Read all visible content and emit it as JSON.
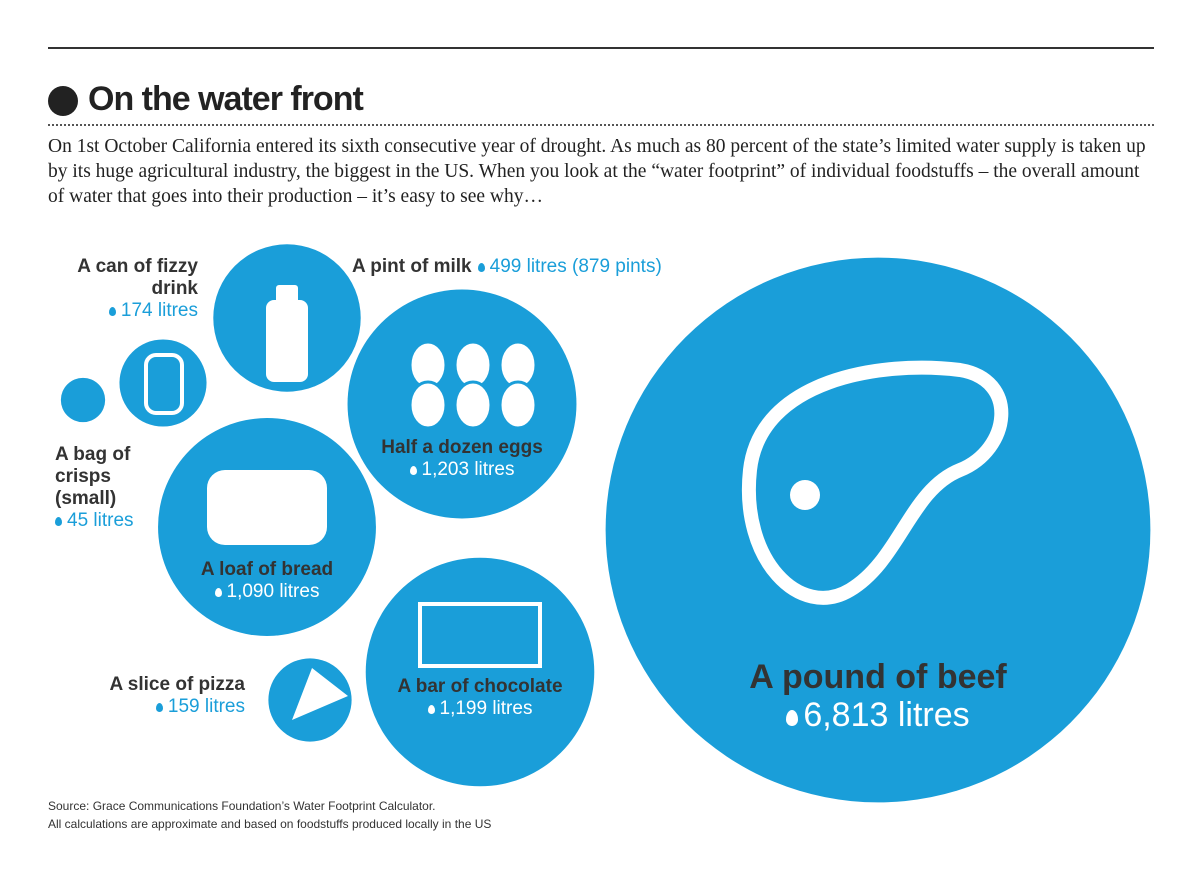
{
  "chart_data": {
    "type": "bubble",
    "title": "On the water front",
    "subtitle": "On 1st October California entered its sixth consecutive year of drought. As much as 80 percent of the state’s limited water supply is taken up by its huge agricultural industry, the biggest in the US. When you look at the “water footprint” of individual foodstuffs – the overall amount of water that goes into their production – it’s easy to see why…",
    "categories": [
      "A can of fizzy drink",
      "A bag of crisps (small)",
      "A pint of milk",
      "Half a dozen eggs",
      "A loaf of bread",
      "A slice of pizza",
      "A bar of chocolate",
      "A pound of beef"
    ],
    "values": [
      174,
      45,
      499,
      1203,
      1090,
      159,
      1199,
      6813
    ],
    "value_labels": [
      "174 litres",
      "45 litres",
      "499 litres (879 pints)",
      "1,203 litres",
      "1,090 litres",
      "159 litres",
      "1,199 litres",
      "6,813 litres"
    ],
    "color": "#1a9ed9",
    "source": [
      "Source: Grace Communications Foundation’s Water Footprint Calculator.",
      "All calculations are approximate and based on foodstuffs produced locally in the US"
    ]
  }
}
